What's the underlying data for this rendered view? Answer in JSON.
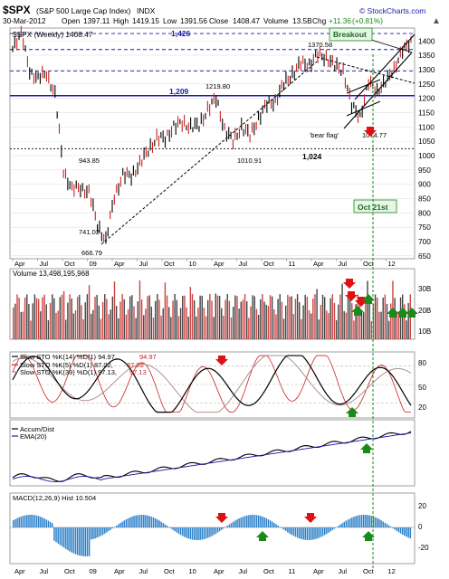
{
  "header": {
    "symbol": "$SPX",
    "name": "(S&P 500 Large Cap Index)",
    "exchange": "INDX",
    "watermark": "© StockCharts.com",
    "date": "30-Mar-2012",
    "open_label": "Open",
    "open": "1397.11",
    "high_label": "High",
    "high": "1419.15",
    "low_label": "Low",
    "low": "1391.56",
    "close_label": "Close",
    "close": "1408.47",
    "volume_label": "Volume",
    "volume": "13.5B",
    "chg_label": "Chg",
    "chg": "+11.36",
    "chg_pct": "(+0.81%)",
    "legend": "$SPX (Weekly) 1408.47"
  },
  "colors": {
    "up": "#000000",
    "down": "#cc2222",
    "accent": "#1a1aa8",
    "green": "#1a8a1a",
    "red": "#dd1111",
    "grid": "#cccccc"
  },
  "price_panel": {
    "y_ticks": [
      "1400",
      "1350",
      "1300",
      "1250",
      "1200",
      "1150",
      "1100",
      "1050",
      "1000",
      "950",
      "900",
      "850",
      "800",
      "750",
      "700",
      "650"
    ],
    "ylim": [
      640,
      1445
    ],
    "levels": [
      {
        "value": 1426,
        "label": "1,426",
        "color": "#1a1aa8",
        "style": "dashed"
      },
      {
        "value": 1370,
        "label": "",
        "color": "#1a1aa8",
        "style": "dashed"
      },
      {
        "value": 1295,
        "label": "",
        "color": "#1a1aa8",
        "style": "dashed"
      },
      {
        "value": 1209,
        "label": "1,209",
        "color": "#1a1aa8",
        "style": "solid"
      },
      {
        "value": 1024,
        "label": "1,024",
        "color": "#000000",
        "style": "dotted"
      }
    ],
    "annotations": [
      {
        "text": "1370.58",
        "color": "#000000"
      },
      {
        "text": "1219.80",
        "color": "#000000"
      },
      {
        "text": "1010.91",
        "color": "#000000"
      },
      {
        "text": "943.85",
        "color": "#000000"
      },
      {
        "text": "741.02",
        "color": "#000000"
      },
      {
        "text": "666.79",
        "color": "#000000"
      },
      {
        "text": "1074.77",
        "color": "#000000"
      },
      {
        "text": "'bear flag'",
        "color": "#000000"
      }
    ],
    "callouts": {
      "breakout": "Breakout",
      "oct21": "Oct 21st"
    }
  },
  "volume_panel": {
    "label": "Volume 13,498,195,968",
    "y_ticks": [
      "30B",
      "20B",
      "10B"
    ]
  },
  "sto_panel": {
    "legend": [
      {
        "name": "Slow STO %K(14) %D(1) 94.97,",
        "value": "94.97",
        "color": "#000000",
        "value_color": "#cc2222"
      },
      {
        "name": "Slow STO %K(5) %D(1) 87.02,",
        "value": "87.02",
        "color": "#cc2222",
        "value_color": "#cc2222"
      },
      {
        "name": "Slow STO %K(39) %D(1) 97.13,",
        "value": "97.13",
        "color": "#b09090",
        "value_color": "#cc2222"
      }
    ],
    "y_ticks": [
      "80",
      "50",
      "20"
    ]
  },
  "ad_panel": {
    "legend": [
      {
        "name": "Accum/Dist",
        "color": "#000000"
      },
      {
        "name": "EMA(20)",
        "color": "#1a1aa8"
      }
    ]
  },
  "macd_panel": {
    "legend": "MACD(12,26,9) Hist 10.504",
    "y_ticks": [
      "20",
      "0",
      "-20"
    ]
  },
  "x_axis": {
    "labels": [
      "Apr",
      "Jul",
      "Oct",
      "09",
      "Apr",
      "Jul",
      "Oct",
      "10",
      "Apr",
      "Jul",
      "Oct",
      "11",
      "Apr",
      "Jul",
      "Oct",
      "12"
    ]
  },
  "chart_data": {
    "type": "line",
    "title": "$SPX (Weekly)",
    "x": [
      "2008-04",
      "2008-05",
      "2008-06",
      "2008-07",
      "2008-08",
      "2008-09",
      "2008-10",
      "2008-11",
      "2008-12",
      "2009-01",
      "2009-02",
      "2009-03",
      "2009-04",
      "2009-05",
      "2009-06",
      "2009-07",
      "2009-08",
      "2009-09",
      "2009-10",
      "2009-11",
      "2009-12",
      "2010-01",
      "2010-02",
      "2010-03",
      "2010-04",
      "2010-05",
      "2010-06",
      "2010-07",
      "2010-08",
      "2010-09",
      "2010-10",
      "2010-11",
      "2010-12",
      "2011-01",
      "2011-02",
      "2011-03",
      "2011-04",
      "2011-05",
      "2011-06",
      "2011-07",
      "2011-08",
      "2011-09",
      "2011-10",
      "2011-11",
      "2011-12",
      "2012-01",
      "2012-02",
      "2012-03"
    ],
    "series": [
      {
        "name": "$SPX",
        "values": [
          1385,
          1420,
          1300,
          1265,
          1290,
          1210,
          950,
          880,
          890,
          870,
          760,
          700,
          860,
          930,
          930,
          970,
          1020,
          1060,
          1060,
          1100,
          1115,
          1100,
          1105,
          1160,
          1200,
          1090,
          1050,
          1100,
          1070,
          1130,
          1180,
          1190,
          1250,
          1285,
          1320,
          1320,
          1350,
          1345,
          1310,
          1300,
          1170,
          1140,
          1250,
          1230,
          1250,
          1310,
          1360,
          1405
        ]
      }
    ],
    "ylim": [
      640,
      1445
    ],
    "xlabel": "",
    "ylabel": ""
  }
}
